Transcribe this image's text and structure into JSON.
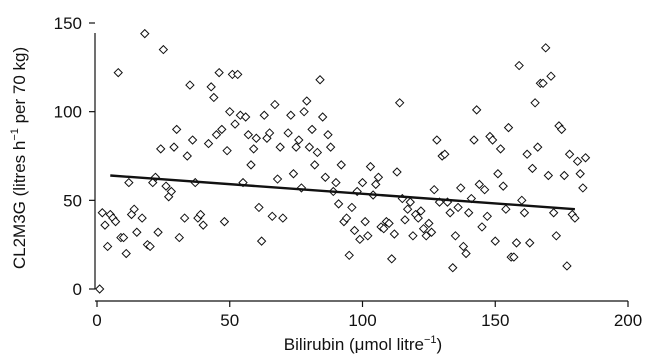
{
  "chart_data": {
    "type": "scatter",
    "xlabel": "Bilirubin (μmol litre",
    "xlabel_sup": "−1",
    "xlabel_tail": ")",
    "ylabel_main": "CL2M3G (litres h",
    "ylabel_sup": "−1",
    "ylabel_tail": " per 70 kg)",
    "xlim": [
      0,
      200
    ],
    "ylim": [
      0,
      150
    ],
    "xticks": [
      "0",
      "50",
      "100",
      "150",
      "200"
    ],
    "yticks": [
      "0",
      "50",
      "100",
      "150"
    ],
    "grid": false,
    "regression_line": {
      "x": [
        5,
        180
      ],
      "y": [
        64,
        45
      ]
    },
    "points": [
      [
        1,
        0
      ],
      [
        2,
        43
      ],
      [
        3,
        36
      ],
      [
        4,
        24
      ],
      [
        5,
        42
      ],
      [
        6,
        40
      ],
      [
        7,
        38
      ],
      [
        8,
        122
      ],
      [
        9,
        29
      ],
      [
        10,
        29
      ],
      [
        11,
        20
      ],
      [
        12,
        60
      ],
      [
        13,
        42
      ],
      [
        14,
        45
      ],
      [
        15,
        32
      ],
      [
        17,
        40
      ],
      [
        18,
        144
      ],
      [
        19,
        25
      ],
      [
        20,
        24
      ],
      [
        21,
        60
      ],
      [
        22,
        63
      ],
      [
        23,
        32
      ],
      [
        24,
        79
      ],
      [
        25,
        135
      ],
      [
        26,
        58
      ],
      [
        27,
        52
      ],
      [
        28,
        55
      ],
      [
        29,
        80
      ],
      [
        30,
        90
      ],
      [
        31,
        29
      ],
      [
        33,
        40
      ],
      [
        34,
        75
      ],
      [
        35,
        115
      ],
      [
        36,
        84
      ],
      [
        37,
        60
      ],
      [
        38,
        40
      ],
      [
        39,
        42
      ],
      [
        40,
        36
      ],
      [
        42,
        82
      ],
      [
        43,
        114
      ],
      [
        44,
        108
      ],
      [
        45,
        87
      ],
      [
        46,
        122
      ],
      [
        47,
        90
      ],
      [
        48,
        38
      ],
      [
        49,
        78
      ],
      [
        50,
        100
      ],
      [
        51,
        121
      ],
      [
        52,
        93
      ],
      [
        53,
        121
      ],
      [
        54,
        98
      ],
      [
        55,
        60
      ],
      [
        56,
        97
      ],
      [
        57,
        87
      ],
      [
        58,
        70
      ],
      [
        59,
        79
      ],
      [
        60,
        85
      ],
      [
        61,
        46
      ],
      [
        62,
        27
      ],
      [
        63,
        98
      ],
      [
        64,
        85
      ],
      [
        65,
        88
      ],
      [
        66,
        41
      ],
      [
        67,
        104
      ],
      [
        68,
        62
      ],
      [
        69,
        80
      ],
      [
        70,
        40
      ],
      [
        72,
        88
      ],
      [
        73,
        98
      ],
      [
        74,
        65
      ],
      [
        75,
        80
      ],
      [
        76,
        84
      ],
      [
        77,
        57
      ],
      [
        78,
        100
      ],
      [
        79,
        106
      ],
      [
        80,
        80
      ],
      [
        81,
        90
      ],
      [
        82,
        70
      ],
      [
        83,
        77
      ],
      [
        84,
        118
      ],
      [
        85,
        97
      ],
      [
        86,
        63
      ],
      [
        87,
        87
      ],
      [
        88,
        80
      ],
      [
        89,
        55
      ],
      [
        90,
        60
      ],
      [
        91,
        48
      ],
      [
        92,
        70
      ],
      [
        93,
        38
      ],
      [
        94,
        40
      ],
      [
        95,
        19
      ],
      [
        96,
        46
      ],
      [
        97,
        33
      ],
      [
        98,
        55
      ],
      [
        99,
        28
      ],
      [
        100,
        60
      ],
      [
        101,
        38
      ],
      [
        102,
        30
      ],
      [
        103,
        69
      ],
      [
        104,
        53
      ],
      [
        105,
        59
      ],
      [
        106,
        63
      ],
      [
        107,
        35
      ],
      [
        108,
        34
      ],
      [
        109,
        38
      ],
      [
        110,
        37
      ],
      [
        111,
        17
      ],
      [
        112,
        31
      ],
      [
        113,
        66
      ],
      [
        114,
        105
      ],
      [
        115,
        51
      ],
      [
        116,
        39
      ],
      [
        117,
        45
      ],
      [
        118,
        49
      ],
      [
        119,
        30
      ],
      [
        120,
        42
      ],
      [
        121,
        40
      ],
      [
        122,
        44
      ],
      [
        123,
        34
      ],
      [
        124,
        30
      ],
      [
        125,
        37
      ],
      [
        126,
        32
      ],
      [
        127,
        56
      ],
      [
        128,
        84
      ],
      [
        129,
        49
      ],
      [
        130,
        75
      ],
      [
        131,
        76
      ],
      [
        132,
        49
      ],
      [
        133,
        43
      ],
      [
        134,
        12
      ],
      [
        135,
        30
      ],
      [
        136,
        46
      ],
      [
        137,
        57
      ],
      [
        138,
        24
      ],
      [
        139,
        20
      ],
      [
        140,
        43
      ],
      [
        141,
        51
      ],
      [
        142,
        84
      ],
      [
        143,
        101
      ],
      [
        144,
        59
      ],
      [
        145,
        35
      ],
      [
        146,
        56
      ],
      [
        147,
        41
      ],
      [
        148,
        86
      ],
      [
        149,
        84
      ],
      [
        150,
        27
      ],
      [
        151,
        65
      ],
      [
        152,
        79
      ],
      [
        153,
        58
      ],
      [
        154,
        45
      ],
      [
        155,
        91
      ],
      [
        156,
        18
      ],
      [
        157,
        18
      ],
      [
        158,
        26
      ],
      [
        159,
        126
      ],
      [
        160,
        50
      ],
      [
        161,
        43
      ],
      [
        162,
        76
      ],
      [
        163,
        26
      ],
      [
        164,
        68
      ],
      [
        165,
        105
      ],
      [
        166,
        80
      ],
      [
        167,
        116
      ],
      [
        168,
        116
      ],
      [
        169,
        136
      ],
      [
        170,
        64
      ],
      [
        171,
        120
      ],
      [
        172,
        43
      ],
      [
        173,
        30
      ],
      [
        174,
        92
      ],
      [
        175,
        90
      ],
      [
        176,
        64
      ],
      [
        177,
        13
      ],
      [
        178,
        76
      ],
      [
        179,
        42
      ],
      [
        180,
        40
      ],
      [
        181,
        72
      ],
      [
        182,
        65
      ],
      [
        183,
        57
      ],
      [
        184,
        74
      ]
    ]
  }
}
